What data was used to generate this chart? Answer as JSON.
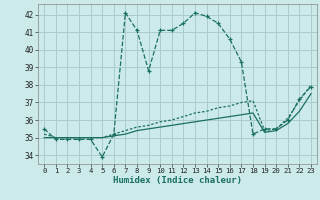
{
  "xlabel": "Humidex (Indice chaleur)",
  "bg_color": "#cceaea",
  "grid_color": "#aacccc",
  "line_color": "#1a7060",
  "xlim": [
    -0.5,
    23.5
  ],
  "ylim": [
    33.5,
    42.6
  ],
  "xticks": [
    0,
    1,
    2,
    3,
    4,
    5,
    6,
    7,
    8,
    9,
    10,
    11,
    12,
    13,
    14,
    15,
    16,
    17,
    18,
    19,
    20,
    21,
    22,
    23
  ],
  "yticks": [
    34,
    35,
    36,
    37,
    38,
    39,
    40,
    41,
    42
  ],
  "s1_x": [
    0,
    1,
    2,
    3,
    4,
    5,
    6,
    7,
    8,
    9,
    10,
    11,
    12,
    13,
    14,
    15,
    16,
    17,
    18,
    19,
    20,
    21,
    22,
    23
  ],
  "s1_y": [
    35.5,
    34.9,
    34.9,
    34.9,
    34.9,
    33.9,
    35.2,
    42.1,
    41.1,
    38.8,
    41.1,
    41.1,
    41.5,
    42.1,
    41.9,
    41.5,
    40.6,
    39.3,
    35.2,
    35.5,
    35.5,
    36.0,
    37.2,
    37.9
  ],
  "s2_x": [
    0,
    1,
    2,
    3,
    4,
    5,
    6,
    7,
    8,
    9,
    10,
    11,
    12,
    13,
    14,
    15,
    16,
    17,
    18,
    19,
    20,
    21,
    22,
    23
  ],
  "s2_y": [
    35.2,
    35.0,
    35.0,
    35.0,
    35.0,
    35.0,
    35.2,
    35.4,
    35.6,
    35.7,
    35.9,
    36.0,
    36.2,
    36.4,
    36.5,
    36.7,
    36.8,
    37.0,
    37.1,
    35.4,
    35.5,
    36.1,
    37.1,
    38.0
  ],
  "s3_x": [
    0,
    1,
    2,
    3,
    4,
    5,
    6,
    7,
    8,
    9,
    10,
    11,
    12,
    13,
    14,
    15,
    16,
    17,
    18,
    19,
    20,
    21,
    22,
    23
  ],
  "s3_y": [
    35.0,
    35.0,
    35.0,
    35.0,
    35.0,
    35.0,
    35.1,
    35.2,
    35.4,
    35.5,
    35.6,
    35.7,
    35.8,
    35.9,
    36.0,
    36.1,
    36.2,
    36.3,
    36.4,
    35.3,
    35.4,
    35.8,
    36.5,
    37.5
  ]
}
